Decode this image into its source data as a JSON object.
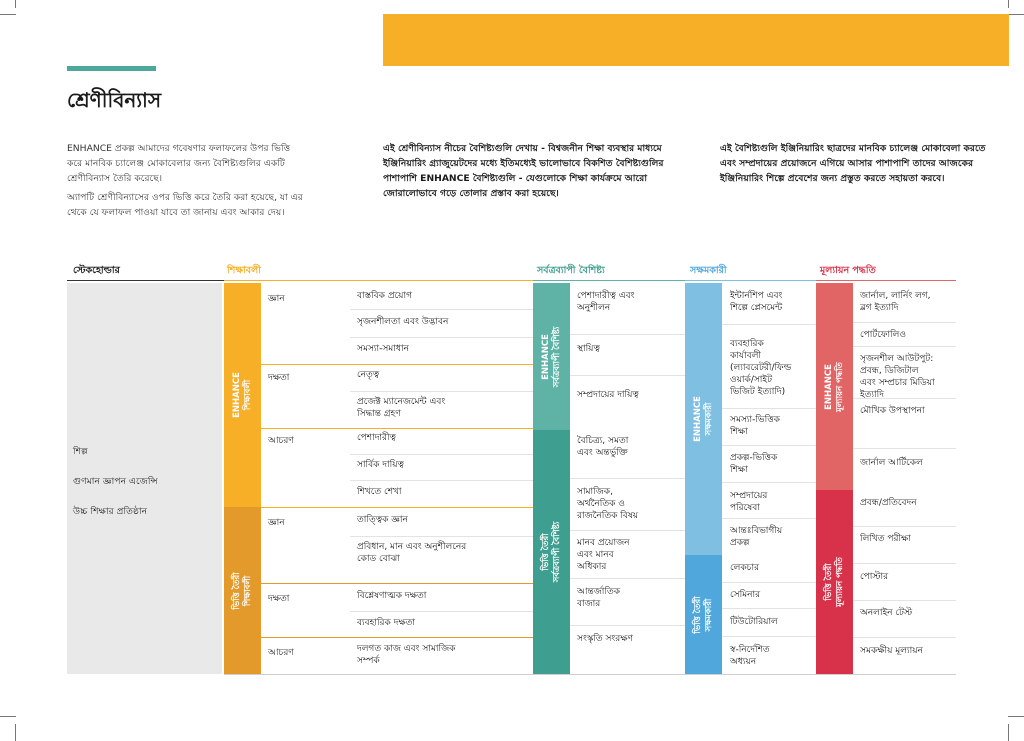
{
  "page": {
    "title": "শ্রেণীবিন্যাস",
    "intro_left": [
      "ENHANCE প্রকল্প আমাদের গবেষণার ফলাফলের উপর ভিত্তি করে মানবিক চ্যালেঞ্জ মোকাবেলার জন্য বৈশিষ্ট্যগুলির একটি শ্রেণীবিন্যাস তৈরি করেছে।",
      "অ্যাপটি শ্রেণীবিন্যাসের ওপর ভিত্তি করে তৈরি করা হয়েছে, যা এর থেকে যে ফলাফল পাওয়া যাবে তা জানায় এবং আকার দেয়।"
    ],
    "intro_mid": "এই শ্রেণীবিন্যাস নীচের বৈশিষ্ট্যগুলি দেখায় - বিশ্বজনীন শিক্ষা ব্যবস্থার মাধ্যমে ইঞ্জিনিয়ারিং গ্র্যাজুয়েটদের মধ্যে ইতিমধ্যেই ভালোভাবে বিকশিত বৈশিষ্ট্যগুলির পাশাপাশি ENHANCE বৈশিষ্ট্যগুলি - যেগুলোকে শিক্ষা কার্যক্রমে আরো জোরালোভাবে গড়ে তোলার প্রস্তাব করা হয়েছে।",
    "intro_right": "এই বৈশিষ্ট্যগুলি ইঞ্জিনিয়ারিং ছাত্রদের মানবিক চ্যালেঞ্জ মোকাবেলা করতে এবং সম্প্রদায়ের প্রয়োজনে এগিয়ে আসার পাশাপাশি তাদের আজকের ইঞ্জিনিয়ারিং শিল্পে প্রবেশের জন্য প্রস্তুত করতে সহায়তা করবে।"
  },
  "headers": {
    "stakeholder": "স্টেকহোল্ডার",
    "learning": "শিক্ষাবলী",
    "crosscutting": "সর্বত্রব্যাপী বৈশিষ্ট্য",
    "enablers": "সক্ষমকারী",
    "assessment": "মূল্যায়ন পদ্ধতি"
  },
  "stakeholders": [
    "শিল্প",
    "গুণমান জ্ঞাপন এজেন্সি",
    "উচ্চ শিক্ষার প্রতিষ্ঠান"
  ],
  "bars": {
    "learning_enhance": "ENHANCE\nশিক্ষাবলী",
    "learning_base": "ভিত্তি তৈরী\nশিক্ষাবলী",
    "cross_enhance": "ENHANCE\nসর্বত্রব্যাপী বৈশিষ্ট্য",
    "cross_base": "ভিত্তি তৈরী\nসর্বত্রব্যাপী বৈশিষ্ট্য",
    "enab_enhance": "ENHANCE\nসক্ষমকারী",
    "enab_base": "ভিত্তি তৈরী\nসক্ষমকারী",
    "assess_enhance": "ENHANCE\nমূল্যায়ন পদ্ধতি",
    "assess_base": "ভিত্তি তৈরী\nমূল্যায়ন পদ্ধতি"
  },
  "subcats": [
    "জ্ঞান",
    "দক্ষতা",
    "আচরণ",
    "জ্ঞান",
    "দক্ষতা",
    "আচরণ"
  ],
  "learning_items": [
    "বাস্তবিক প্রয়োগ",
    "সৃজনশীলতা এবং উদ্ভাবন",
    "সমস্যা-সমাধান",
    "নেতৃত্ব",
    "প্রজেক্ট ম্যানেজমেন্ট এবং\nসিদ্ধান্ত গ্রহণ",
    "পেশাদারীত্ব",
    "সার্বিক দায়িত্ব",
    "শিখতে শেখা",
    "তাত্ত্বিক জ্ঞান",
    "প্রবিধান, মান এবং অনুশীলনের\nকোড বোঝা",
    "বিশ্লেষণাত্মক দক্ষতা",
    "ব্যবহারিক দক্ষতা",
    "দলগত কাজ এবং সামাজিক\nসম্পর্ক"
  ],
  "cross_items": [
    "পেশাদারীত্ব এবং\nঅনুশীলন",
    "স্থায়িত্ব",
    "সম্প্রদায়ের দায়িত্ব",
    "বৈচিত্র্য, সমতা\nএবং অন্তর্ভুক্তি",
    "সামাজিক,\nঅর্থনৈতিক ও\nরাজনৈতিক বিষয়",
    "মানব প্রয়োজন\nএবং মানব\nঅধিকার",
    "আন্তর্জাতিক\nবাজার",
    "সংস্কৃতি সংরক্ষণ"
  ],
  "enab_items": [
    "ইন্টার্নশিপ এবং\nশিল্পে প্লেসমেন্ট",
    "ব্যবহারিক\nকার্যাবলী\n(ল্যাবরেটরী/ফিল্ড\nওয়ার্ক/সাইট\nভিজিট ইত্যাদি)",
    "সমস্যা-ভিত্তিক\nশিক্ষা",
    "প্রকল্প-ভিত্তিক\nশিক্ষা",
    "সম্প্রদায়ের\nপরিষেবা",
    "আন্তঃবিভাগীয়\nপ্রকল্প",
    "লেকচার",
    "সেমিনার",
    "টিউটোরিয়াল",
    "স্ব-নির্দেশিত\nঅধ্যয়ন"
  ],
  "assess_items": [
    "জার্নাল, লার্নিং লগ,\nব্লগ ইত্যাদি",
    "পোর্টফোলিও",
    "সৃজনশীল আউটপুট:\nপ্রবন্ধ, ডিজিটাল\nএবং সম্প্রচার মিডিয়া\nইত্যাদি",
    "মৌখিক উপস্থাপনা",
    "জার্নাল আর্টিকেল",
    "প্রবন্ধ/প্রতিবেদন",
    "লিখিত পরীক্ষা",
    "পোস্টার",
    "অনলাইন টেস্ট",
    "সমকক্ষীয় মূল্যায়ন"
  ],
  "colors": {
    "orange": "#F6AF27",
    "learning": "#F6AF27",
    "learning_dark": "#E39A2A",
    "cross_light": "#5FB3A6",
    "cross_dark": "#3E9E90",
    "enab_light": "#7EBFE2",
    "enab_dark": "#4FA7DC",
    "assess_light": "#E26565",
    "assess_dark": "#D8314A",
    "teal": "#4BA89B",
    "stake_bg": "#E9E9E9"
  }
}
